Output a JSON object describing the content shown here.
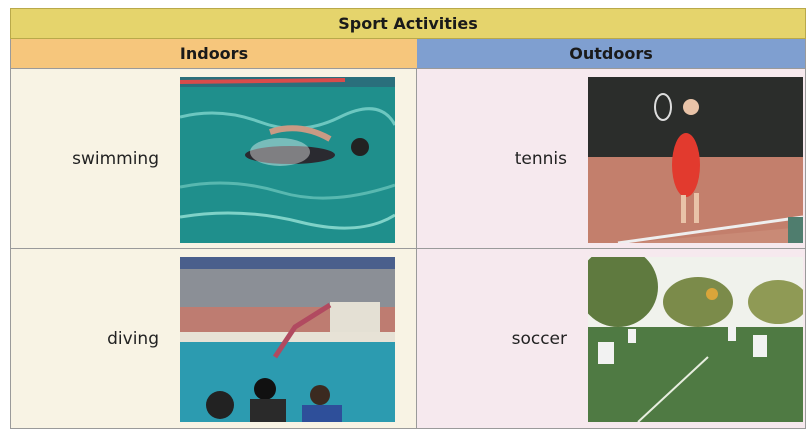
{
  "table": {
    "title": "Sport Activities",
    "headers": [
      "Indoors",
      "Outdoors"
    ],
    "rows": [
      [
        "swimming",
        "tennis"
      ],
      [
        "diving",
        "soccer"
      ]
    ]
  }
}
